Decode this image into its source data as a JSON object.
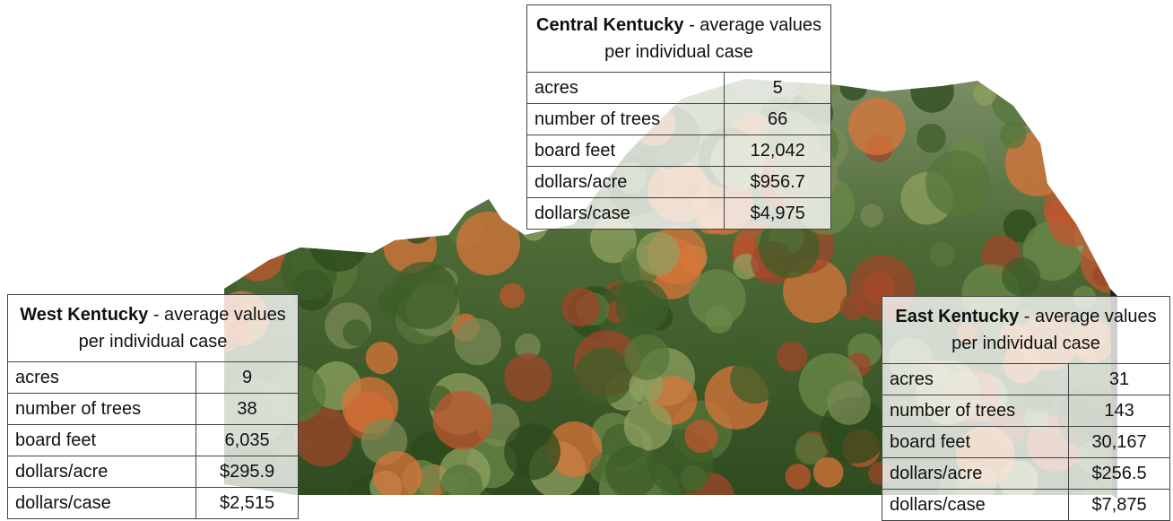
{
  "tables": [
    {
      "region": "Central Kentucky",
      "heading": "- average values per individual case",
      "rows": [
        [
          "acres",
          "5"
        ],
        [
          "number of trees",
          "66"
        ],
        [
          "board feet",
          "12,042"
        ],
        [
          "dollars/acre",
          "$956.7"
        ],
        [
          "dollars/case",
          "$4,975"
        ]
      ]
    },
    {
      "region": "West Kentucky",
      "heading": "- average values per individual case",
      "rows": [
        [
          "acres",
          "9"
        ],
        [
          "number of trees",
          "38"
        ],
        [
          "board feet",
          "6,035"
        ],
        [
          "dollars/acre",
          "$295.9"
        ],
        [
          "dollars/case",
          "$2,515"
        ]
      ]
    },
    {
      "region": "East Kentucky",
      "heading": "- average values per individual case",
      "rows": [
        [
          "acres",
          "31"
        ],
        [
          "number of trees",
          "143"
        ],
        [
          "board feet",
          "30,167"
        ],
        [
          "dollars/acre",
          "$256.5"
        ],
        [
          "dollars/case",
          "$7,875"
        ]
      ]
    }
  ]
}
